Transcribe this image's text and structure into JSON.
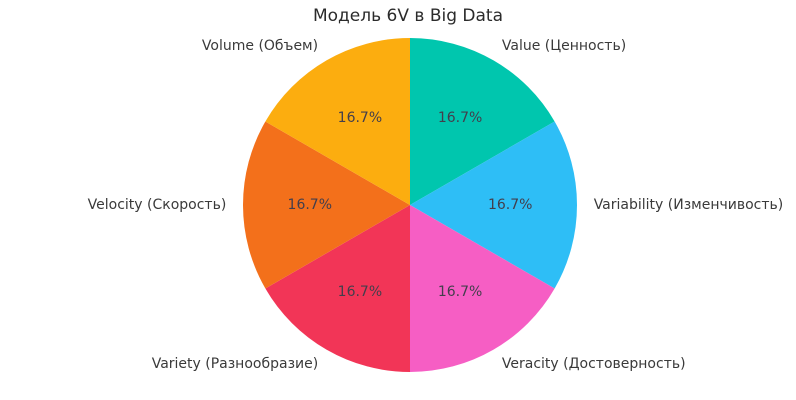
{
  "chart_data": {
    "type": "pie",
    "title": "Модель 6V в Big Data",
    "start_angle_deg": 90,
    "direction": "clockwise",
    "background": "#FFFFFF",
    "label_color": "#3A3A3A",
    "percent_text_color": "#433E4C",
    "slices": [
      {
        "label": "Value (Ценность)",
        "value": 16.7,
        "percent_label": "16.7%",
        "color": "#00C6AE"
      },
      {
        "label": "Variability (Изменчивость)",
        "value": 16.7,
        "percent_label": "16.7%",
        "color": "#2EBEF6"
      },
      {
        "label": "Veracity (Достоверность)",
        "value": 16.7,
        "percent_label": "16.7%",
        "color": "#F65EC4"
      },
      {
        "label": "Variety (Разнообразие)",
        "value": 16.7,
        "percent_label": "16.7%",
        "color": "#F23557"
      },
      {
        "label": "Velocity (Скорость)",
        "value": 16.7,
        "percent_label": "16.7%",
        "color": "#F3701B"
      },
      {
        "label": "Volume (Объем)",
        "value": 16.7,
        "percent_label": "16.7%",
        "color": "#FCAD0F"
      }
    ]
  }
}
